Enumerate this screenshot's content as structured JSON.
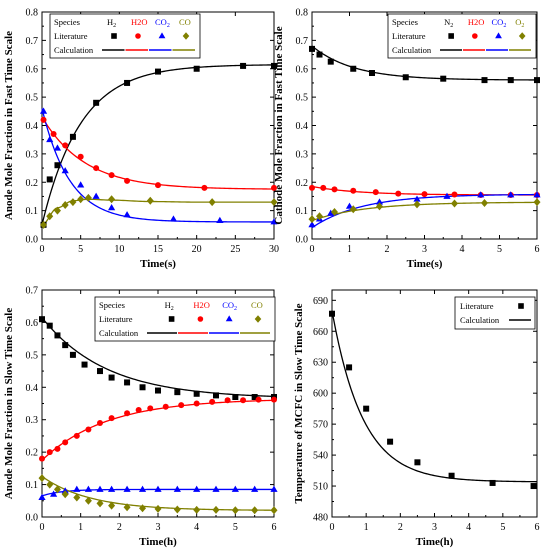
{
  "panels": [
    {
      "id": "anode-fast",
      "type": "line+scatter",
      "xlabel": "Time(s)",
      "ylabel": "Anode Mole Fraction in Fast Time Scale",
      "xlim": [
        0,
        30
      ],
      "ylim": [
        0,
        0.8
      ],
      "xticks": [
        0,
        5,
        10,
        15,
        20,
        25,
        30
      ],
      "xtick_labels": [
        "0",
        "5",
        "10",
        "15",
        "20",
        "25",
        "30"
      ],
      "yticks": [
        0,
        0.1,
        0.2,
        0.3,
        0.4,
        0.5,
        0.6,
        0.7,
        0.8
      ],
      "ytick_labels": [
        "0.0",
        "0.1",
        "0.2",
        "0.3",
        "0.4",
        "0.5",
        "0.6",
        "0.7",
        "0.8"
      ],
      "legend_header": [
        "Species",
        "H2",
        "H2O",
        "CO2",
        "CO"
      ],
      "legend_rows": [
        "Literature",
        "Calculation"
      ],
      "legend_position": "top-left",
      "series": [
        {
          "name": "H2",
          "color": "#000000",
          "marker": "square",
          "lit_x": [
            0.2,
            1,
            2,
            4,
            7,
            11,
            15,
            20,
            26,
            30
          ],
          "lit_y": [
            0.05,
            0.21,
            0.26,
            0.36,
            0.48,
            0.55,
            0.59,
            0.6,
            0.61,
            0.61
          ],
          "calc": {
            "a": 0.05,
            "b": 0.615,
            "k": 0.2
          }
        },
        {
          "name": "H2O",
          "color": "#ff0000",
          "marker": "circle",
          "lit_x": [
            0.2,
            1.5,
            3,
            5,
            7,
            9,
            11,
            15,
            21,
            30
          ],
          "lit_y": [
            0.42,
            0.37,
            0.33,
            0.29,
            0.25,
            0.225,
            0.205,
            0.19,
            0.18,
            0.18
          ],
          "calc": {
            "a": 0.43,
            "b": 0.175,
            "k": 0.18
          }
        },
        {
          "name": "CO2",
          "color": "#0000ff",
          "marker": "triangle",
          "lit_x": [
            0.2,
            1,
            2,
            3,
            5,
            7,
            9,
            11,
            17,
            23,
            30
          ],
          "lit_y": [
            0.45,
            0.35,
            0.32,
            0.24,
            0.19,
            0.15,
            0.11,
            0.085,
            0.07,
            0.065,
            0.06
          ],
          "calc": {
            "a": 0.46,
            "b": 0.06,
            "k": 0.28
          }
        },
        {
          "name": "CO",
          "color": "#808000",
          "marker": "diamond",
          "lit_x": [
            0.2,
            1,
            2,
            3,
            4,
            5,
            6,
            9,
            14,
            22,
            30
          ],
          "lit_y": [
            0.05,
            0.08,
            0.1,
            0.12,
            0.13,
            0.14,
            0.145,
            0.14,
            0.135,
            0.13,
            0.13
          ],
          "calc": {
            "hump": true,
            "pts": [
              [
                0,
                0.05
              ],
              [
                2,
                0.11
              ],
              [
                4,
                0.135
              ],
              [
                6,
                0.14
              ],
              [
                9,
                0.137
              ],
              [
                14,
                0.132
              ],
              [
                20,
                0.13
              ],
              [
                30,
                0.13
              ]
            ]
          }
        }
      ]
    },
    {
      "id": "cathode-fast",
      "type": "line+scatter",
      "xlabel": "Time(s)",
      "ylabel": "Cathode Mole Fraction in Fast Time Scale",
      "xlim": [
        0,
        6
      ],
      "ylim": [
        0,
        0.8
      ],
      "xticks": [
        0,
        1,
        2,
        3,
        4,
        5,
        6
      ],
      "xtick_labels": [
        "0",
        "1",
        "2",
        "3",
        "4",
        "5",
        "6"
      ],
      "yticks": [
        0,
        0.1,
        0.2,
        0.3,
        0.4,
        0.5,
        0.6,
        0.7,
        0.8
      ],
      "ytick_labels": [
        "0.0",
        "0.1",
        "0.2",
        "0.3",
        "0.4",
        "0.5",
        "0.6",
        "0.7",
        "0.8"
      ],
      "legend_header": [
        "Species",
        "N2",
        "H2O",
        "CO2",
        "O2"
      ],
      "legend_rows": [
        "Literature",
        "Calculation"
      ],
      "legend_position": "top-right",
      "series": [
        {
          "name": "N2",
          "color": "#000000",
          "marker": "square",
          "lit_x": [
            0,
            0.2,
            0.5,
            1.1,
            1.6,
            2.5,
            3.5,
            4.6,
            5.3,
            6
          ],
          "lit_y": [
            0.67,
            0.65,
            0.625,
            0.6,
            0.585,
            0.57,
            0.565,
            0.56,
            0.56,
            0.56
          ],
          "calc": {
            "a": 0.68,
            "b": 0.56,
            "k": 0.9
          }
        },
        {
          "name": "H2O",
          "color": "#ff0000",
          "marker": "circle",
          "lit_x": [
            0,
            0.3,
            0.6,
            1.1,
            1.7,
            2.3,
            3,
            3.8,
            4.5,
            5.3,
            6
          ],
          "lit_y": [
            0.18,
            0.18,
            0.175,
            0.17,
            0.165,
            0.16,
            0.158,
            0.157,
            0.155,
            0.155,
            0.155
          ],
          "calc": {
            "a": 0.185,
            "b": 0.155,
            "k": 0.8
          }
        },
        {
          "name": "CO2",
          "color": "#0000ff",
          "marker": "triangle",
          "lit_x": [
            0,
            0.2,
            0.5,
            1,
            1.8,
            2.8,
            3.6,
            4.5,
            5.3,
            6
          ],
          "lit_y": [
            0.05,
            0.07,
            0.09,
            0.115,
            0.13,
            0.14,
            0.15,
            0.155,
            0.155,
            0.155
          ],
          "calc": {
            "a": 0.04,
            "b": 0.158,
            "k": 0.75
          }
        },
        {
          "name": "O2",
          "color": "#808000",
          "marker": "diamond",
          "lit_x": [
            0,
            0.2,
            0.6,
            1.1,
            1.8,
            2.8,
            3.8,
            4.6,
            6
          ],
          "lit_y": [
            0.07,
            0.08,
            0.095,
            0.105,
            0.115,
            0.122,
            0.125,
            0.127,
            0.13
          ],
          "calc": {
            "a": 0.065,
            "b": 0.13,
            "k": 0.7
          }
        }
      ]
    },
    {
      "id": "anode-slow",
      "type": "line+scatter",
      "xlabel": "Time(h)",
      "ylabel": "Anode Mole Fraction in Slow Time Scale",
      "xlim": [
        0,
        6
      ],
      "ylim": [
        0,
        0.7
      ],
      "xticks": [
        0,
        1,
        2,
        3,
        4,
        5,
        6
      ],
      "xtick_labels": [
        "0",
        "1",
        "2",
        "3",
        "4",
        "5",
        "6"
      ],
      "yticks": [
        0,
        0.1,
        0.2,
        0.3,
        0.4,
        0.5,
        0.6,
        0.7
      ],
      "ytick_labels": [
        "0.0",
        "0.1",
        "0.2",
        "0.3",
        "0.4",
        "0.5",
        "0.6",
        "0.7"
      ],
      "legend_header": [
        "Species",
        "H2",
        "H2O",
        "CO2",
        "CO"
      ],
      "legend_rows": [
        "Literature",
        "Calculation"
      ],
      "legend_position": "top-right",
      "series": [
        {
          "name": "H2",
          "color": "#000000",
          "marker": "square",
          "lit_x": [
            0,
            0.2,
            0.4,
            0.6,
            0.8,
            1.1,
            1.5,
            1.8,
            2.2,
            2.6,
            3,
            3.5,
            4,
            4.5,
            5,
            5.5,
            6
          ],
          "lit_y": [
            0.61,
            0.59,
            0.56,
            0.53,
            0.5,
            0.47,
            0.45,
            0.43,
            0.415,
            0.4,
            0.39,
            0.385,
            0.38,
            0.375,
            0.37,
            0.37,
            0.37
          ],
          "calc": {
            "a": 0.615,
            "b": 0.365,
            "k": 0.6
          }
        },
        {
          "name": "H2O",
          "color": "#ff0000",
          "marker": "circle",
          "lit_x": [
            0,
            0.2,
            0.4,
            0.6,
            0.9,
            1.2,
            1.5,
            1.8,
            2.2,
            2.5,
            2.8,
            3.2,
            3.6,
            4,
            4.4,
            4.8,
            5.2,
            5.6,
            6
          ],
          "lit_y": [
            0.18,
            0.2,
            0.21,
            0.23,
            0.25,
            0.27,
            0.29,
            0.305,
            0.32,
            0.33,
            0.335,
            0.34,
            0.345,
            0.35,
            0.355,
            0.36,
            0.36,
            0.362,
            0.362
          ],
          "calc": {
            "a": 0.175,
            "b": 0.365,
            "k": 0.6
          }
        },
        {
          "name": "CO2",
          "color": "#0000ff",
          "marker": "triangle",
          "lit_x": [
            0,
            0.3,
            0.6,
            0.9,
            1.2,
            1.5,
            1.8,
            2.2,
            2.6,
            3,
            3.5,
            4,
            4.5,
            5,
            5.5,
            6
          ],
          "lit_y": [
            0.06,
            0.07,
            0.08,
            0.085,
            0.085,
            0.085,
            0.085,
            0.085,
            0.085,
            0.085,
            0.085,
            0.085,
            0.085,
            0.085,
            0.085,
            0.085
          ],
          "calc": {
            "a": 0.065,
            "b": 0.085,
            "k": 2.0
          }
        },
        {
          "name": "CO",
          "color": "#808000",
          "marker": "diamond",
          "lit_x": [
            0,
            0.2,
            0.4,
            0.6,
            0.9,
            1.2,
            1.5,
            1.8,
            2.2,
            2.6,
            3,
            3.5,
            4,
            4.5,
            5,
            5.5,
            6
          ],
          "lit_y": [
            0.12,
            0.1,
            0.085,
            0.07,
            0.06,
            0.05,
            0.042,
            0.035,
            0.03,
            0.027,
            0.025,
            0.023,
            0.022,
            0.022,
            0.021,
            0.021,
            0.021
          ],
          "calc": {
            "a": 0.125,
            "b": 0.02,
            "k": 0.8
          }
        }
      ]
    },
    {
      "id": "temperature-slow",
      "type": "line+scatter",
      "xlabel": "Time(h)",
      "ylabel": "Temperature of MCFC in Slow Time Scale",
      "xlim": [
        0,
        6
      ],
      "ylim": [
        480,
        700
      ],
      "xticks": [
        0,
        1,
        2,
        3,
        4,
        5,
        6
      ],
      "xtick_labels": [
        "0",
        "1",
        "2",
        "3",
        "4",
        "5",
        "6"
      ],
      "yticks": [
        480,
        510,
        540,
        570,
        600,
        630,
        660,
        690
      ],
      "ytick_labels": [
        "480",
        "510",
        "540",
        "570",
        "600",
        "630",
        "660",
        "690"
      ],
      "legend_header": [],
      "legend_rows": [
        "Literature",
        "Calculation"
      ],
      "legend_position": "top-right",
      "series": [
        {
          "name": "",
          "color": "#000000",
          "marker": "square",
          "lit_x": [
            0,
            0.5,
            1,
            1.7,
            2.5,
            3.5,
            4.7,
            5.9
          ],
          "lit_y": [
            677,
            625,
            585,
            553,
            533,
            520,
            513,
            510
          ],
          "calc": {
            "a": 680,
            "b": 514,
            "k": 1.1
          }
        }
      ]
    }
  ]
}
